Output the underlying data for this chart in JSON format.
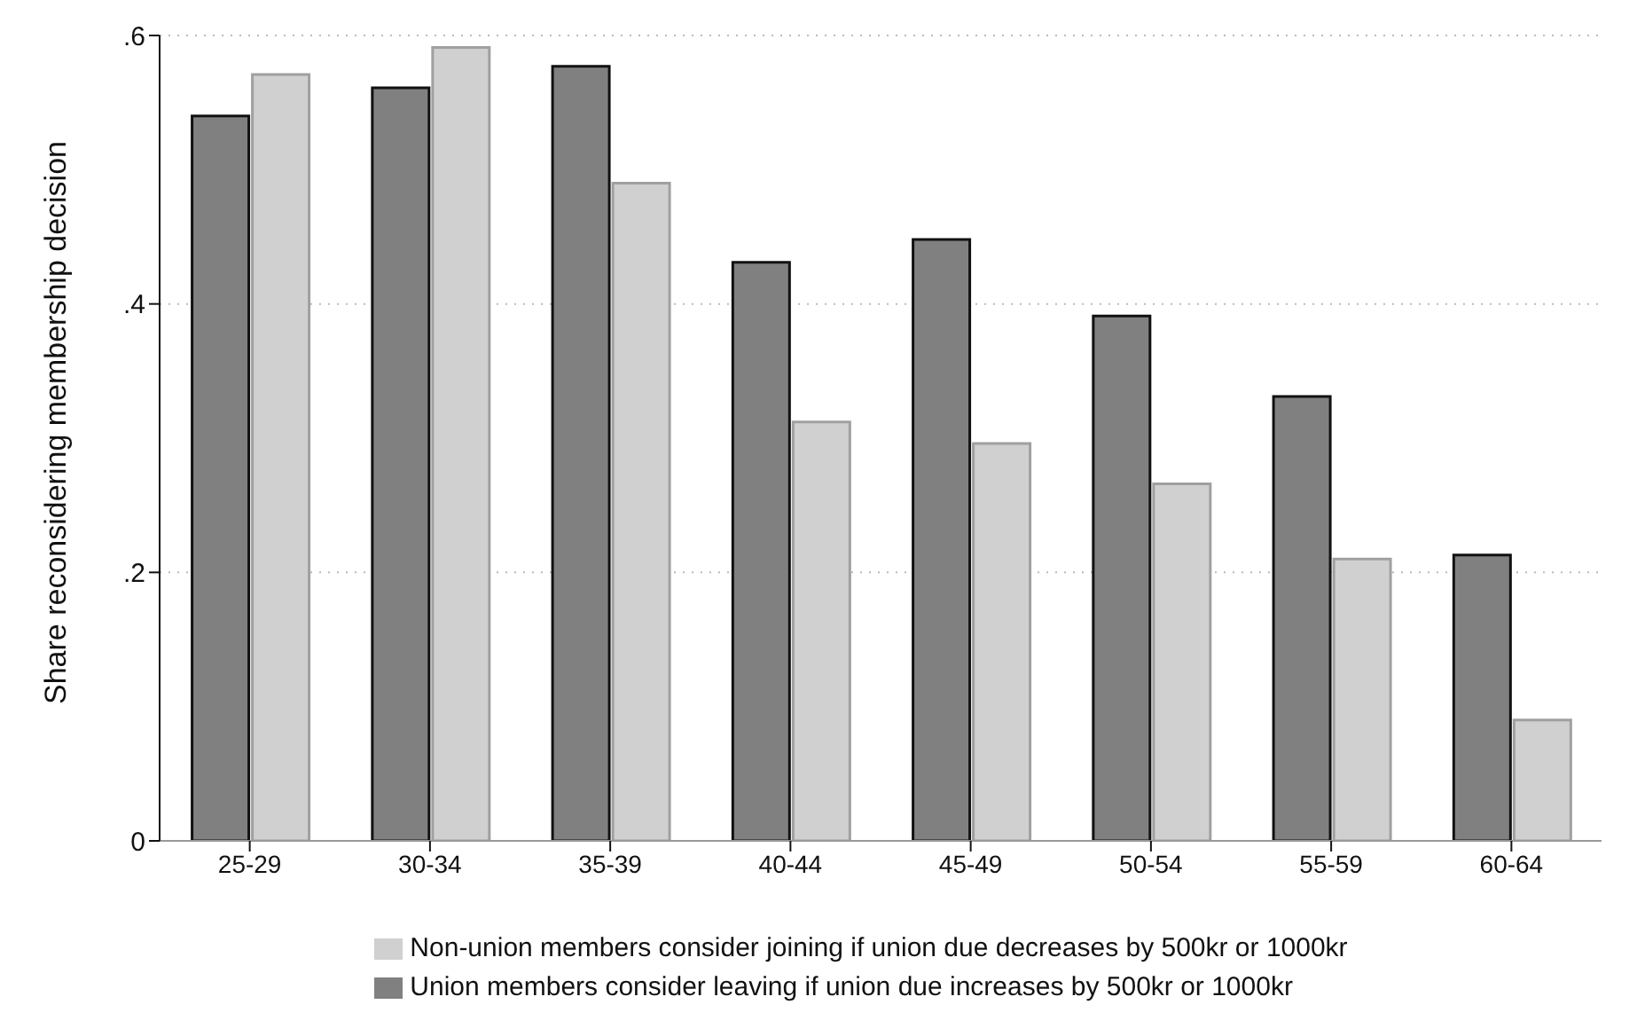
{
  "chart_data": {
    "type": "bar",
    "ylabel": "Share reconsidering membership decision",
    "categories": [
      "25-29",
      "30-34",
      "35-39",
      "40-44",
      "45-49",
      "50-54",
      "55-59",
      "60-64"
    ],
    "series": [
      {
        "name": "Union members consider leaving if union due increases by 500kr or 1000kr",
        "color": "#808080",
        "values": [
          0.54,
          0.561,
          0.577,
          0.431,
          0.448,
          0.391,
          0.331,
          0.213
        ]
      },
      {
        "name": "Non-union members consider joining if union due decreases by 500kr or 1000kr",
        "color": "#d0d0d0",
        "values": [
          0.571,
          0.591,
          0.49,
          0.312,
          0.296,
          0.266,
          0.21,
          0.09
        ]
      }
    ],
    "ylim": [
      0,
      0.6
    ],
    "yticks": [
      {
        "value": 0,
        "label": "0"
      },
      {
        "value": 0.2,
        "label": ".2"
      },
      {
        "value": 0.4,
        "label": ".4"
      },
      {
        "value": 0.6,
        "label": ".6"
      }
    ],
    "grid": "y",
    "legend": "bottom"
  }
}
